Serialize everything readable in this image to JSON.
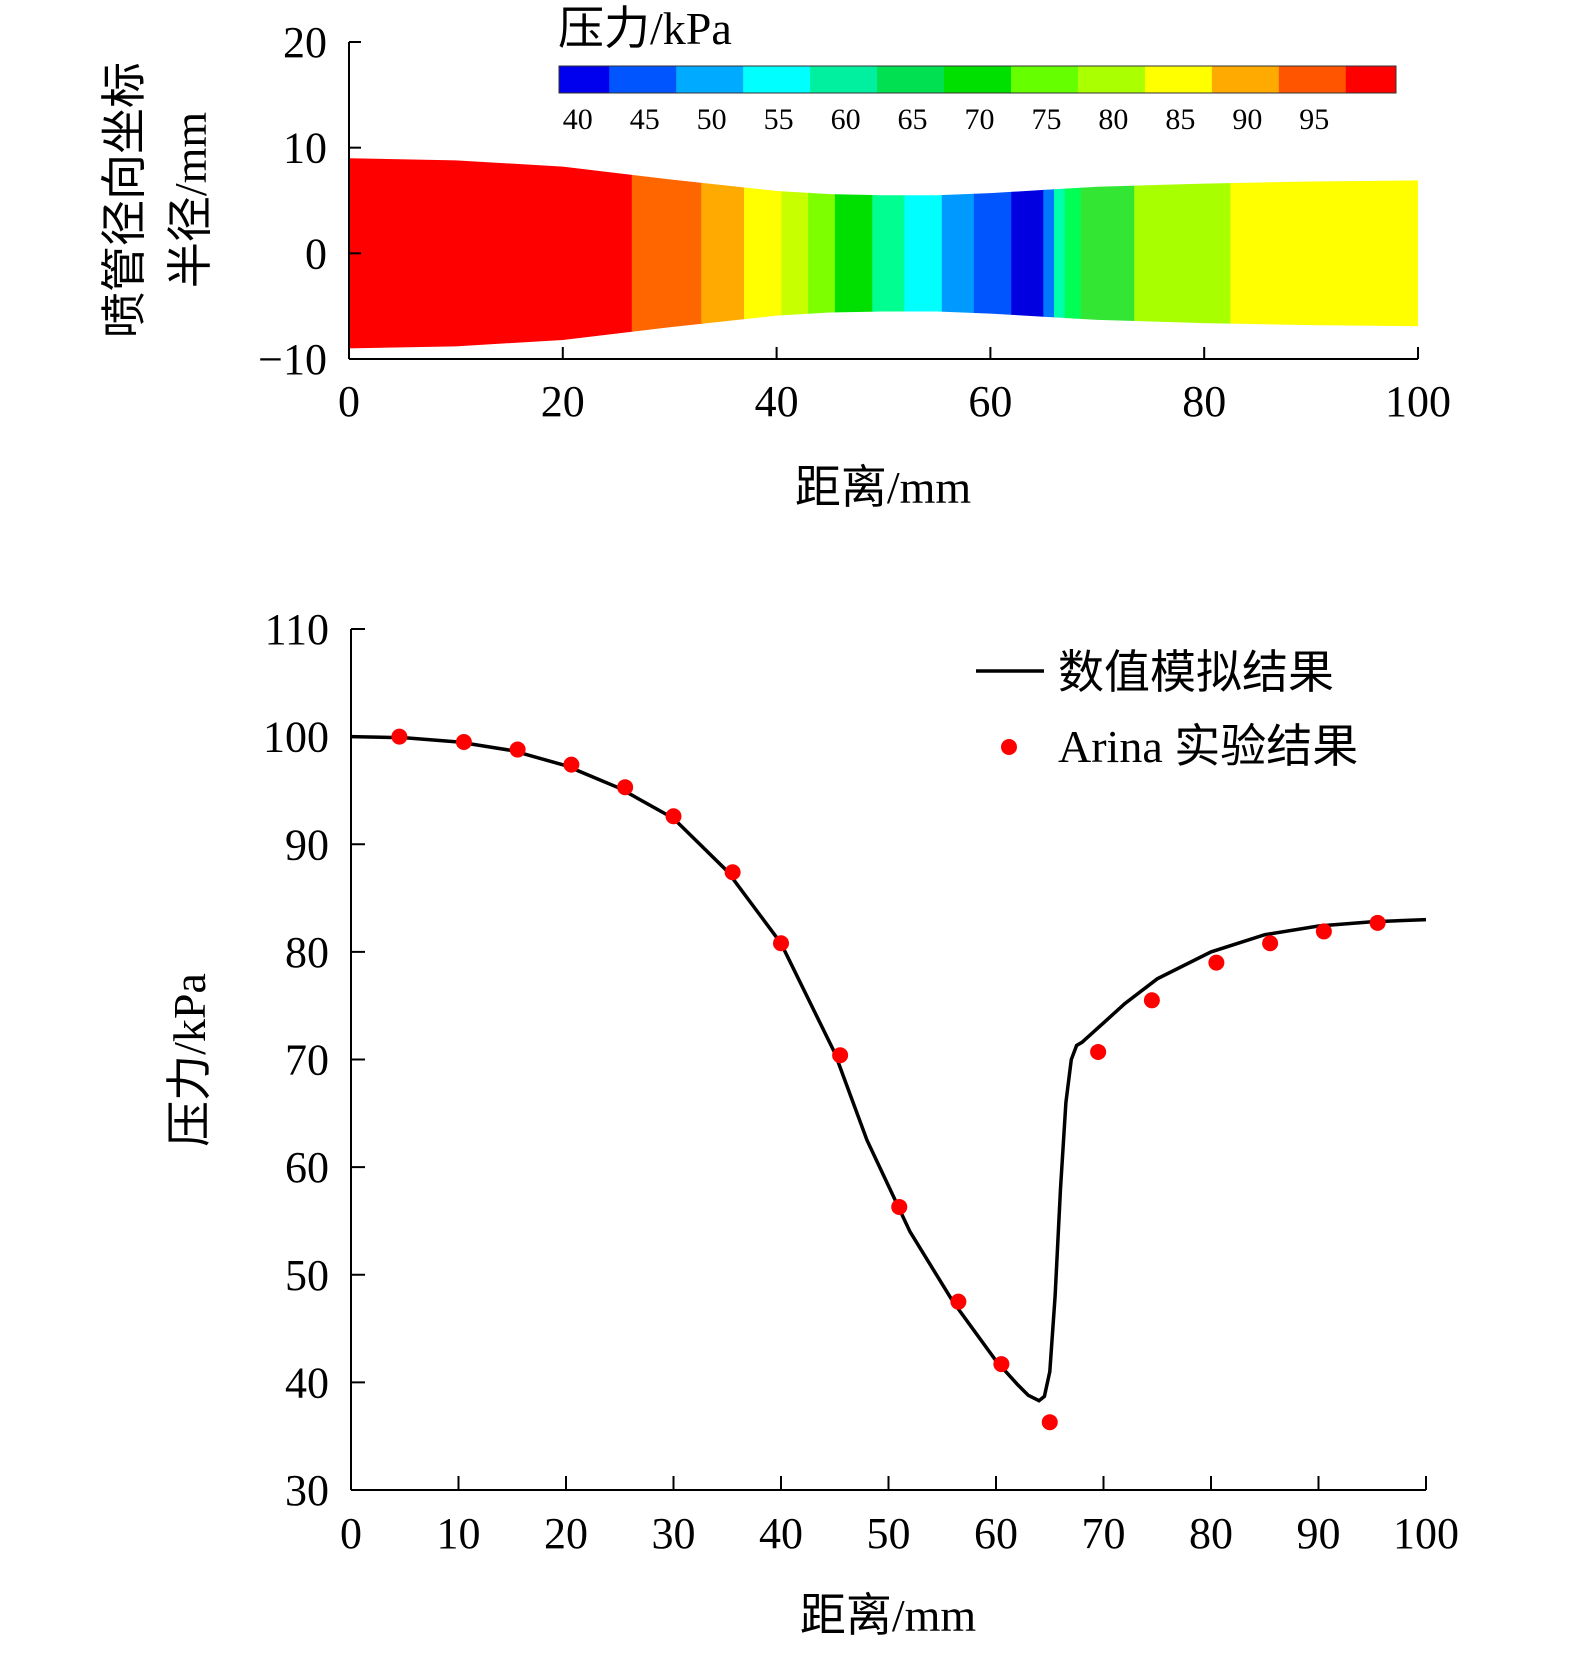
{
  "chart_data": [
    {
      "type": "heatmap",
      "title": "",
      "xlabel": "距离/mm",
      "ylabel": [
        "喷管径向坐标",
        "半径/mm"
      ],
      "xlim": [
        0,
        100
      ],
      "ylim": [
        -10,
        20
      ],
      "x_ticks": [
        "0",
        "20",
        "40",
        "60",
        "80",
        "100"
      ],
      "y_ticks": [
        "20",
        "10",
        "0",
        "−10"
      ],
      "grid": false,
      "nozzle_profile": {
        "x": [
          0,
          10,
          20,
          30,
          40,
          45,
          50,
          55,
          60,
          65,
          70,
          80,
          90,
          100
        ],
        "radius": [
          9.0,
          8.8,
          8.2,
          7.0,
          5.9,
          5.6,
          5.5,
          5.5,
          5.7,
          6.0,
          6.3,
          6.6,
          6.8,
          6.9
        ]
      },
      "pressure_bands": [
        {
          "x_start": 0,
          "x_end": 26.5,
          "color": "#ff0000"
        },
        {
          "x_start": 26.5,
          "x_end": 33,
          "color": "#ff6600"
        },
        {
          "x_start": 33,
          "x_end": 37,
          "color": "#ffaa00"
        },
        {
          "x_start": 37,
          "x_end": 40.5,
          "color": "#ffff00"
        },
        {
          "x_start": 40.5,
          "x_end": 43,
          "color": "#c8ff00"
        },
        {
          "x_start": 43,
          "x_end": 45.5,
          "color": "#7dff00"
        },
        {
          "x_start": 45.5,
          "x_end": 49,
          "color": "#00e000"
        },
        {
          "x_start": 49,
          "x_end": 52,
          "color": "#00ff90"
        },
        {
          "x_start": 52,
          "x_end": 55.5,
          "color": "#00ffff"
        },
        {
          "x_start": 55.5,
          "x_end": 58.5,
          "color": "#0099ff"
        },
        {
          "x_start": 58.5,
          "x_end": 62,
          "color": "#0055ff"
        },
        {
          "x_start": 62,
          "x_end": 65,
          "color": "#0000e0"
        },
        {
          "x_start": 65,
          "x_end": 66,
          "color": "#0077ff"
        },
        {
          "x_start": 66,
          "x_end": 67,
          "color": "#00ffaa"
        },
        {
          "x_start": 67,
          "x_end": 68.5,
          "color": "#00ff55"
        },
        {
          "x_start": 68.5,
          "x_end": 73.5,
          "color": "#33e633"
        },
        {
          "x_start": 73.5,
          "x_end": 82.5,
          "color": "#a8ff00"
        },
        {
          "x_start": 82.5,
          "x_end": 100,
          "color": "#ffff00"
        }
      ],
      "colorbar": {
        "title": "压力/kPa",
        "tick_labels": [
          "40",
          "45",
          "50",
          "55",
          "60",
          "65",
          "70",
          "75",
          "80",
          "85",
          "90",
          "95"
        ],
        "colors": [
          "#0000ee",
          "#0055ff",
          "#00aaff",
          "#00ffff",
          "#00f0a0",
          "#00e050",
          "#00e000",
          "#66ff00",
          "#aaff00",
          "#ffff00",
          "#ffaa00",
          "#ff5500",
          "#ff0000"
        ],
        "placement": "top"
      }
    },
    {
      "type": "line",
      "title": "",
      "xlabel": "距离/mm",
      "ylabel": "压力/kPa",
      "xlim": [
        0,
        100
      ],
      "ylim": [
        30,
        110
      ],
      "x_ticks": [
        "0",
        "10",
        "20",
        "30",
        "40",
        "50",
        "60",
        "70",
        "80",
        "90",
        "100"
      ],
      "y_ticks": [
        "110",
        "100",
        "90",
        "80",
        "70",
        "60",
        "50",
        "40",
        "30"
      ],
      "grid": false,
      "legend_placement": "top-right",
      "series": [
        {
          "name": "数值模拟结果",
          "style": "line",
          "color": "#000000",
          "x": [
            0,
            5,
            10,
            15,
            20,
            25,
            30,
            35,
            40,
            45,
            48,
            52,
            56,
            60,
            62,
            63,
            64,
            64.5,
            65,
            65.5,
            66,
            66.5,
            67,
            67.5,
            68,
            69,
            70,
            72,
            75,
            80,
            85,
            90,
            95,
            100
          ],
          "y": [
            100,
            99.9,
            99.5,
            98.7,
            97.3,
            95.2,
            92.4,
            87.5,
            80.8,
            70.6,
            62.5,
            54,
            47.5,
            42.0,
            39.8,
            38.8,
            38.3,
            38.7,
            41,
            48,
            58,
            66,
            70,
            71.3,
            71.6,
            72.5,
            73.4,
            75.2,
            77.5,
            80.0,
            81.6,
            82.4,
            82.8,
            83.0
          ]
        },
        {
          "name": "Arina 实验结果",
          "style": "scatter",
          "color": "#ff0000",
          "x": [
            4.5,
            10.5,
            15.5,
            20.5,
            25.5,
            30,
            35.5,
            40,
            45.5,
            51,
            56.5,
            60.5,
            65,
            69.5,
            74.5,
            80.5,
            85.5,
            90.5,
            95.5
          ],
          "y": [
            100,
            99.5,
            98.8,
            97.4,
            95.3,
            92.6,
            87.4,
            80.8,
            70.4,
            56.3,
            47.5,
            41.7,
            36.3,
            70.7,
            75.5,
            79.0,
            80.8,
            81.9,
            82.7
          ]
        }
      ]
    }
  ]
}
